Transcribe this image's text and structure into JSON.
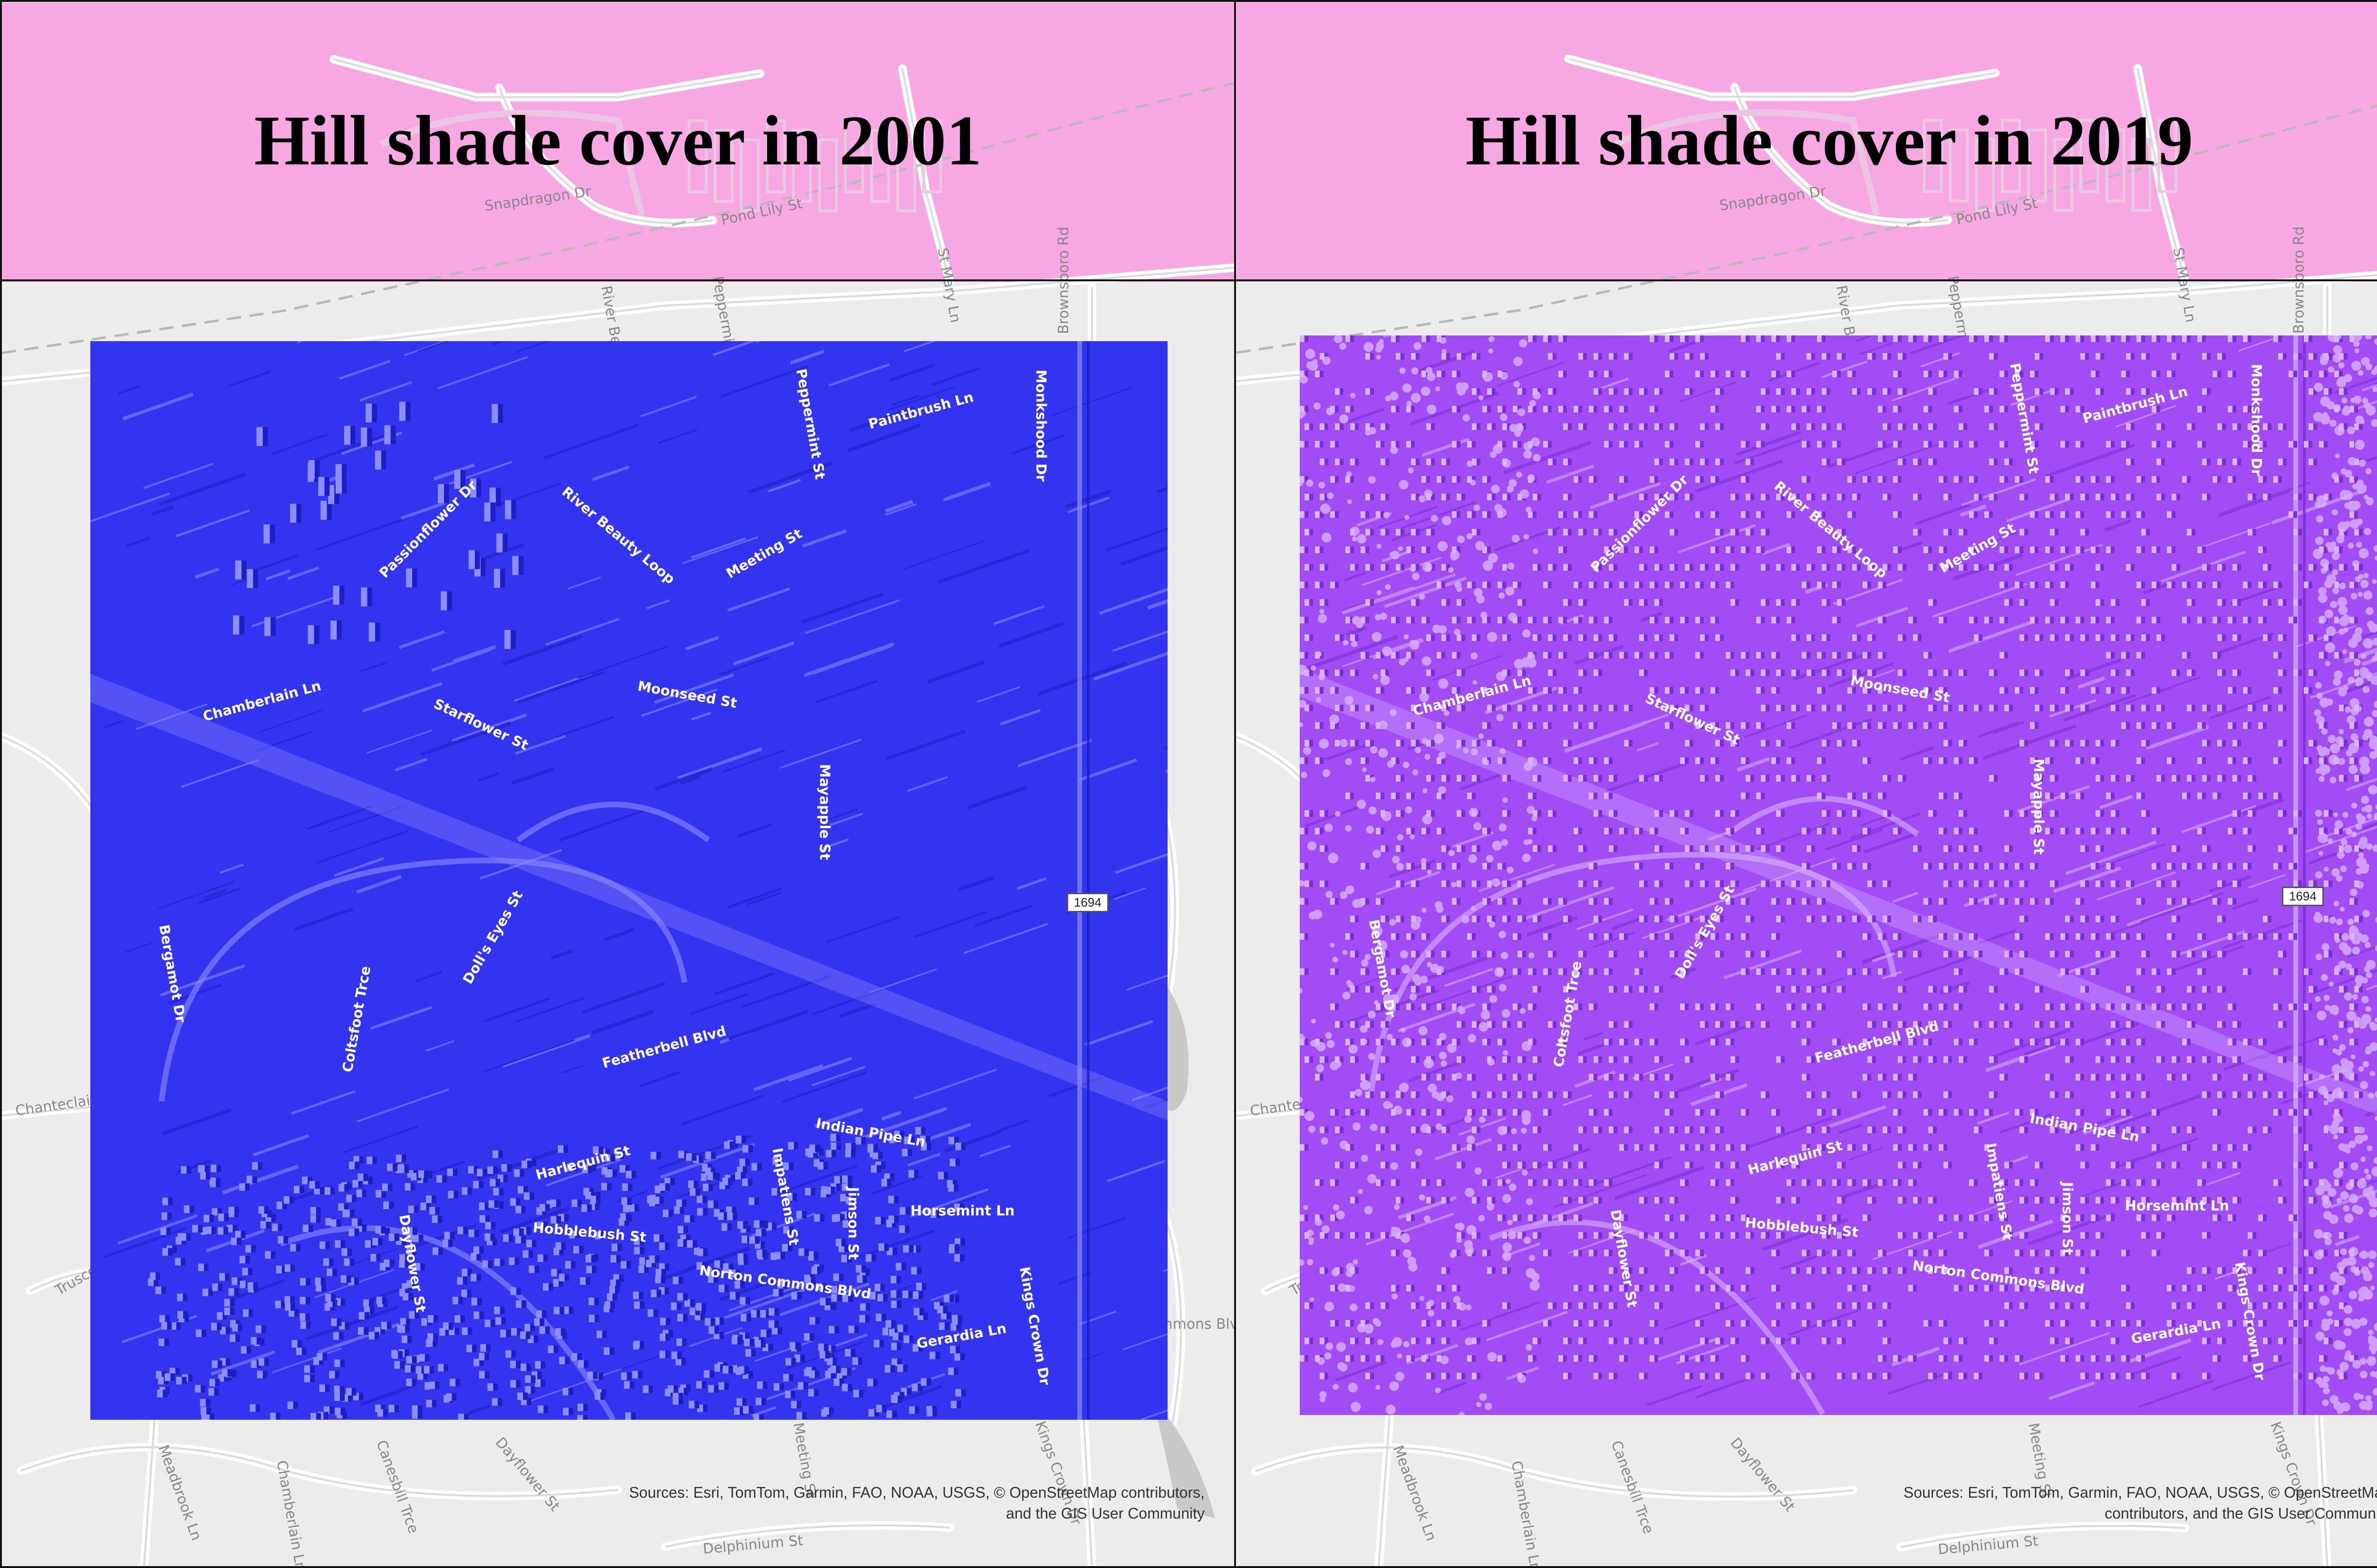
{
  "header_bg": "#f7a8e3",
  "basemap_bg": "#ececec",
  "panels": [
    {
      "title": "Hill shade cover in 2001",
      "hillshade_color": "#3334f0",
      "hillshade_dark": "#1d1fc4",
      "hillshade_light": "#8c8dff",
      "route_shield": "1694",
      "attribution": "Sources: Esri, TomTom, Garmin, FAO, NOAA, USGS, © OpenStreetMap contributors, and the GIS User Community"
    },
    {
      "title": "Hill shade cover in 2019",
      "hillshade_color": "#a14cf5",
      "hillshade_dark": "#7a2ed4",
      "hillshade_light": "#d8b3ff",
      "route_shield": "1694",
      "attribution": "Sources: Esri, TomTom, Garmin, FAO, NOAA, USGS, © OpenStreetMap contributors, and the GIS User Community"
    }
  ],
  "street_labels": {
    "outside": [
      "Snapdragon Dr",
      "Pond Lily St",
      "River Beauty Loop",
      "Peppermint St",
      "St Mary Ln",
      "Brownsboro Rd",
      "Chanteclair Dr",
      "Truscott Ct",
      "Meadbrook Ln",
      "Chamberlain Ln",
      "Canesbill Trce",
      "Dayflower St",
      "Delphinium St",
      "Meeting St",
      "Norton Commons Blvd",
      "Kings Crown Dr"
    ],
    "inside": [
      "Paintbrush Ln",
      "Monkshood Dr",
      "Peppermint St",
      "Passionflower Dr",
      "River Beauty Loop",
      "Meeting St",
      "Moonseed St",
      "Starflower St",
      "Chamberlain Ln",
      "Mayapple St",
      "Bergamot Dr",
      "Doll's Eyes St",
      "Featherbell Blvd",
      "Coltsfoot Trce",
      "Indian Pipe Ln",
      "Harlequin St",
      "Impatiens St",
      "Horsemint Ln",
      "Hobblebush St",
      "Norton Commons Blvd",
      "Jimson St",
      "Dayflower St",
      "Gerardia Ln",
      "Kings Crown Dr"
    ]
  }
}
